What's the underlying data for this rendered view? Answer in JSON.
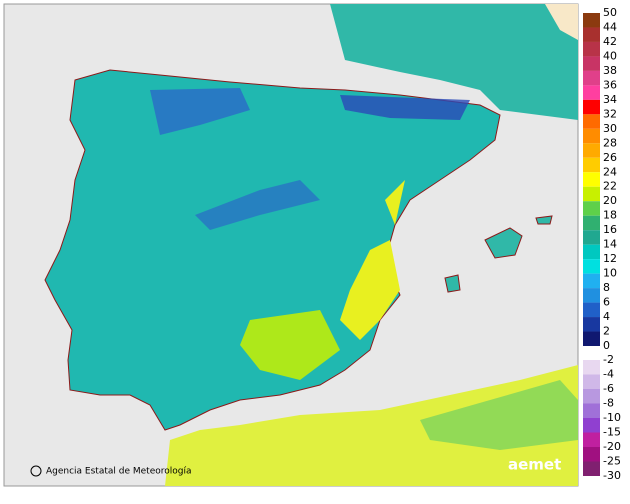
{
  "legend": {
    "positive": {
      "labels": [
        "50",
        "44",
        "42",
        "40",
        "38",
        "36",
        "34",
        "32",
        "30",
        "28",
        "26",
        "24",
        "22",
        "20",
        "18",
        "16",
        "14",
        "12",
        "10",
        "8",
        "6",
        "4",
        "2",
        "0"
      ],
      "colors": [
        "#8b3a0f",
        "#a8302e",
        "#b83348",
        "#c83465",
        "#e0408a",
        "#ff3fa0",
        "#ff0000",
        "#ff6a00",
        "#ff8c00",
        "#ffaa00",
        "#ffcc00",
        "#ffff00",
        "#c8f000",
        "#5ed04a",
        "#30b070",
        "#20a890",
        "#00c8c0",
        "#00e0e0",
        "#20b0f0",
        "#2090e0",
        "#2060c8",
        "#1838a0",
        "#101870"
      ]
    },
    "negative": {
      "labels": [
        "-2",
        "-4",
        "-6",
        "-8",
        "-10",
        "-15",
        "-20",
        "-25",
        "-30"
      ],
      "colors": [
        "#e8d8f0",
        "#d0b8e8",
        "#b898e0",
        "#a070d8",
        "#9040d0",
        "#c020a0",
        "#a01080",
        "#802070"
      ]
    }
  },
  "footer": {
    "agency": "Agencia Estatal de Meteorología",
    "logo": "aemet"
  }
}
